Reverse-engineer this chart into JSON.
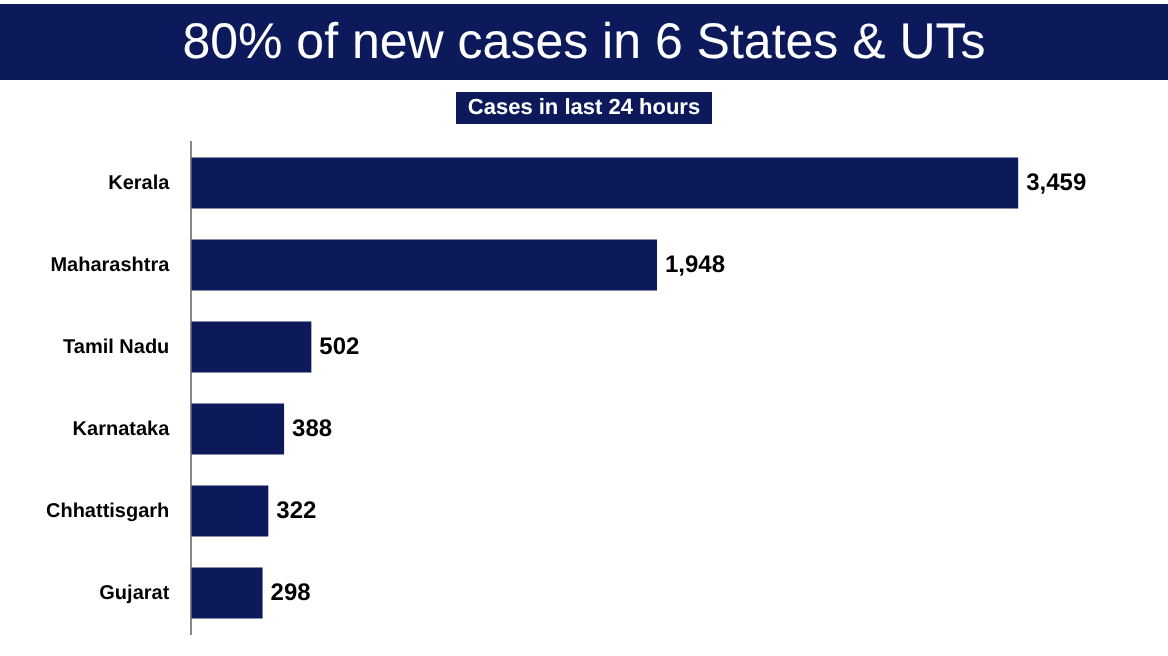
{
  "chart_data": {
    "type": "bar",
    "orientation": "horizontal",
    "title": "80% of new cases in 6 States & UTs",
    "subtitle": "Cases in last 24 hours",
    "categories": [
      "Kerala",
      "Maharashtra",
      "Tamil Nadu",
      "Karnataka",
      "Chhattisgarh",
      "Gujarat"
    ],
    "values": [
      3459,
      1948,
      502,
      388,
      322,
      298
    ],
    "value_labels": [
      "3,459",
      "1,948",
      "502",
      "388",
      "322",
      "298"
    ],
    "color": "#0c1a5b"
  }
}
